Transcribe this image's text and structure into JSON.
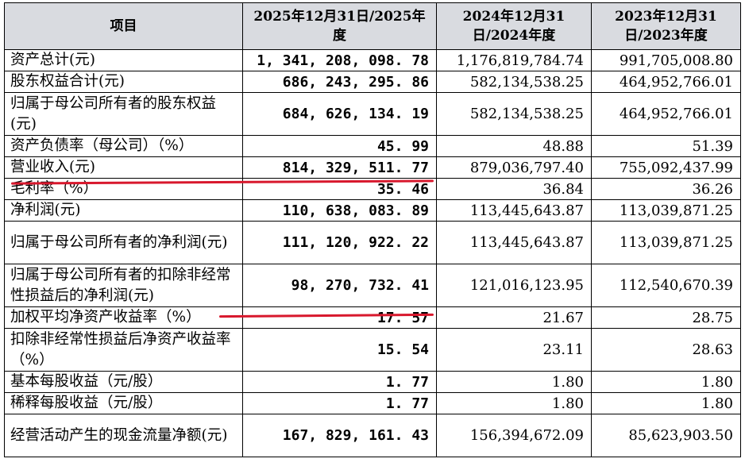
{
  "header": {
    "item": "项目",
    "col2025": "2025年12月31日/2025年度",
    "col2024": "2024年12月31日/2024年度",
    "col2023": "2023年12月31日/2023年度"
  },
  "rows": [
    {
      "label": "资产总计(元)",
      "v2025": "1, 341, 208, 098. 78",
      "v2024": "1,176,819,784.74",
      "v2023": "991,705,008.80"
    },
    {
      "label": "股东权益合计(元)",
      "v2025": "686, 243, 295. 86",
      "v2024": "582,134,538.25",
      "v2023": "464,952,766.01"
    },
    {
      "label": "归属于母公司所有者的股东权益(元)",
      "v2025": "684, 626, 134. 19",
      "v2024": "582,134,538.25",
      "v2023": "464,952,766.01"
    },
    {
      "label": "资产负债率（母公司）（%）",
      "v2025": "45. 99",
      "v2024": "48.88",
      "v2023": "51.39"
    },
    {
      "label": "营业收入(元)",
      "v2025": "814, 329, 511. 77",
      "v2024": "879,036,797.40",
      "v2023": "755,092,437.99"
    },
    {
      "label": "毛利率（%）",
      "v2025": "35. 46",
      "v2024": "36.84",
      "v2023": "36.26"
    },
    {
      "label": "净利润(元)",
      "v2025": "110, 638, 083. 89",
      "v2024": "113,445,643.87",
      "v2023": "113,039,871.25"
    },
    {
      "label": "归属于母公司所有者的净利润(元)",
      "v2025": "111, 120, 922. 22",
      "v2024": "113,445,643.87",
      "v2023": "113,039,871.25"
    },
    {
      "label": "归属于母公司所有者的扣除非经常性损益后的净利润(元)",
      "v2025": "98, 270, 732. 41",
      "v2024": "121,016,123.95",
      "v2023": "112,540,670.39"
    },
    {
      "label": "加权平均净资产收益率（%）",
      "v2025": "17. 57",
      "v2024": "21.67",
      "v2023": "28.75"
    },
    {
      "label": "扣除非经常性损益后净资产收益率（%）",
      "v2025": "15. 54",
      "v2024": "23.11",
      "v2023": "28.63"
    },
    {
      "label": "基本每股收益（元/股）",
      "v2025": "1. 77",
      "v2024": "1.80",
      "v2023": "1.80"
    },
    {
      "label": "稀释每股收益（元/股）",
      "v2025": "1. 77",
      "v2024": "1.80",
      "v2023": "1.80"
    },
    {
      "label": "经营活动产生的现金流量净额(元)",
      "v2025": "167, 829, 161. 43",
      "v2024": "156,394,672.09",
      "v2023": "85,623,903.50"
    }
  ],
  "colors": {
    "header_bg": "#d9dbe0",
    "annotation_red": "#d8182d"
  }
}
